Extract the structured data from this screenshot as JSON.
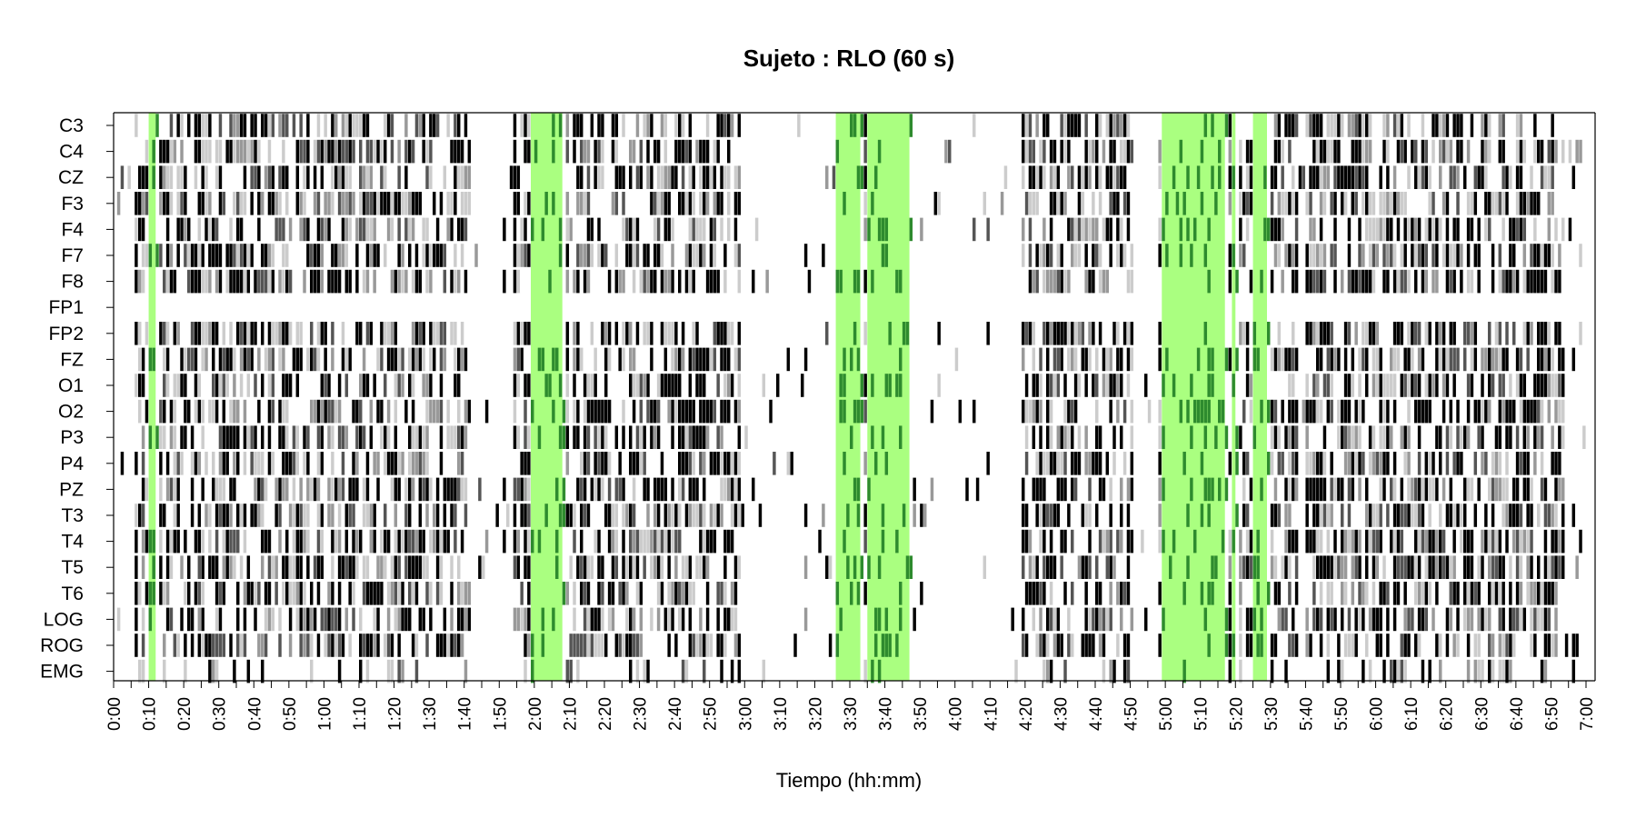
{
  "chart_data": {
    "type": "heatmap",
    "title": "Sujeto : RLO  (60 s)",
    "xlabel": "Tiempo (hh:mm)",
    "ylabel": "",
    "xlim_minutes": [
      0,
      420
    ],
    "channels": [
      "C3",
      "C4",
      "CZ",
      "F3",
      "F4",
      "F7",
      "F8",
      "FP1",
      "FP2",
      "FZ",
      "O1",
      "O2",
      "P3",
      "P4",
      "PZ",
      "T3",
      "T4",
      "T5",
      "T6",
      "LOG",
      "ROG",
      "EMG"
    ],
    "x_tick_labels": [
      "0:00",
      "0:10",
      "0:20",
      "0:30",
      "0:40",
      "0:50",
      "1:00",
      "1:10",
      "1:20",
      "1:30",
      "1:40",
      "1:50",
      "2:00",
      "2:10",
      "2:20",
      "2:30",
      "2:40",
      "2:50",
      "3:00",
      "3:10",
      "3:20",
      "3:30",
      "3:40",
      "3:50",
      "4:00",
      "4:10",
      "4:20",
      "4:30",
      "4:40",
      "4:50",
      "5:00",
      "5:10",
      "5:20",
      "5:30",
      "5:40",
      "5:50",
      "6:00",
      "6:10",
      "6:20",
      "6:30",
      "6:40",
      "6:50",
      "7:00"
    ],
    "highlight_bands_minutes": [
      [
        10,
        12
      ],
      [
        119,
        128
      ],
      [
        206,
        213
      ],
      [
        215,
        227
      ],
      [
        299,
        317
      ],
      [
        319,
        320
      ],
      [
        325,
        329
      ]
    ],
    "blank_channels": [
      "FP1"
    ],
    "activity_segments_minutes": [
      [
        6,
        100
      ],
      [
        114,
        178
      ],
      [
        206,
        227
      ],
      [
        259,
        290
      ],
      [
        298,
        337
      ],
      [
        349,
        365
      ],
      [
        340,
        413
      ]
    ],
    "colors": {
      "highlight": "#aaff80",
      "highlight_dark": "#2e8b2e",
      "mark_levels": [
        "#000000",
        "#555555",
        "#999999",
        "#cccccc"
      ]
    }
  }
}
